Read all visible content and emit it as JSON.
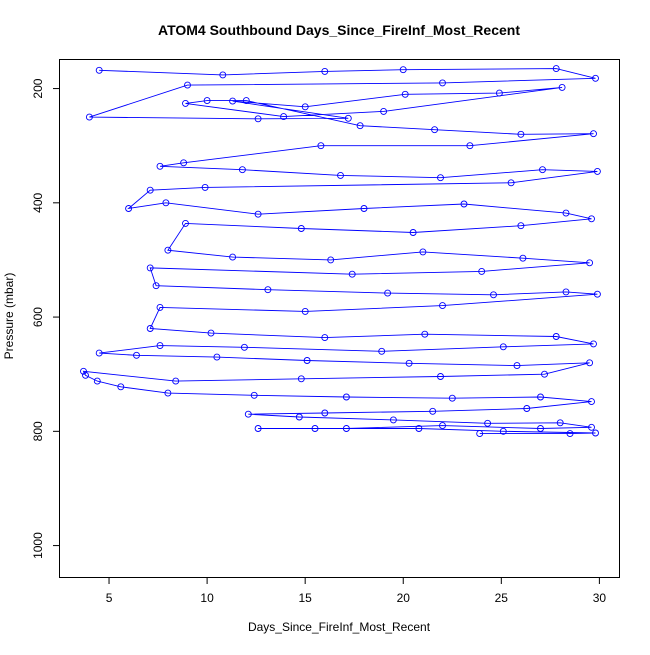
{
  "chart_data": {
    "type": "line",
    "title": "ATOM4 Southbound Days_Since_FireInf_Most_Recent",
    "xlabel": "Days_Since_FireInf_Most_Recent",
    "ylabel": "Pressure (mbar)",
    "xlim": [
      2.5,
      31
    ],
    "ylim": [
      1055,
      150
    ],
    "y_axis_inverted": true,
    "grid": false,
    "legend": "none",
    "marker": "open-circle",
    "colors": {
      "series": "#0000ff",
      "axes": "#000000",
      "background": "#ffffff"
    },
    "x_ticks": [
      {
        "value": 5,
        "label": "5"
      },
      {
        "value": 10,
        "label": "10"
      },
      {
        "value": 15,
        "label": "15"
      },
      {
        "value": 20,
        "label": "20"
      },
      {
        "value": 25,
        "label": "25"
      },
      {
        "value": 30,
        "label": "30"
      }
    ],
    "y_ticks": [
      {
        "value": 200,
        "label": "200"
      },
      {
        "value": 400,
        "label": "400"
      },
      {
        "value": 600,
        "label": "600"
      },
      {
        "value": 800,
        "label": "800"
      },
      {
        "value": 1000,
        "label": "1000"
      }
    ],
    "series": [
      {
        "points": [
          [
            4.5,
            168
          ],
          [
            10.8,
            176
          ],
          [
            16.0,
            170
          ],
          [
            20.0,
            167
          ],
          [
            27.8,
            165
          ],
          [
            29.8,
            182
          ],
          [
            22.0,
            190
          ],
          [
            9.0,
            194
          ],
          [
            4.0,
            250
          ],
          [
            12.6,
            253
          ],
          [
            17.2,
            252
          ],
          [
            11.3,
            222
          ],
          [
            15.0,
            232
          ],
          [
            20.1,
            210
          ],
          [
            24.9,
            208
          ],
          [
            28.1,
            198
          ],
          [
            19.0,
            240
          ],
          [
            13.9,
            249
          ],
          [
            8.9,
            226
          ],
          [
            10.0,
            221
          ],
          [
            12.0,
            221
          ],
          [
            17.8,
            265
          ],
          [
            21.6,
            272
          ],
          [
            26.0,
            280
          ],
          [
            29.7,
            279
          ],
          [
            23.4,
            300
          ],
          [
            15.8,
            300
          ],
          [
            8.8,
            330
          ],
          [
            7.6,
            336
          ],
          [
            11.8,
            342
          ],
          [
            16.8,
            352
          ],
          [
            21.9,
            356
          ],
          [
            27.1,
            342
          ],
          [
            29.9,
            345
          ],
          [
            25.5,
            365
          ],
          [
            9.9,
            373
          ],
          [
            7.1,
            378
          ],
          [
            6.0,
            410
          ],
          [
            7.9,
            400
          ],
          [
            12.6,
            420
          ],
          [
            18.0,
            410
          ],
          [
            23.1,
            402
          ],
          [
            28.3,
            418
          ],
          [
            29.6,
            428
          ],
          [
            26.0,
            440
          ],
          [
            20.5,
            452
          ],
          [
            14.8,
            445
          ],
          [
            8.9,
            436
          ],
          [
            8.0,
            483
          ],
          [
            11.3,
            495
          ],
          [
            16.3,
            500
          ],
          [
            21.0,
            486
          ],
          [
            26.1,
            497
          ],
          [
            29.5,
            505
          ],
          [
            24.0,
            520
          ],
          [
            17.4,
            525
          ],
          [
            7.1,
            514
          ],
          [
            7.4,
            545
          ],
          [
            13.1,
            552
          ],
          [
            19.2,
            558
          ],
          [
            24.6,
            561
          ],
          [
            28.3,
            556
          ],
          [
            29.9,
            560
          ],
          [
            22.0,
            580
          ],
          [
            15.0,
            590
          ],
          [
            7.6,
            583
          ],
          [
            7.1,
            620
          ],
          [
            10.2,
            628
          ],
          [
            16.0,
            636
          ],
          [
            21.1,
            630
          ],
          [
            27.8,
            634
          ],
          [
            29.7,
            647
          ],
          [
            25.1,
            652
          ],
          [
            18.9,
            660
          ],
          [
            11.9,
            653
          ],
          [
            7.6,
            650
          ],
          [
            4.5,
            663
          ],
          [
            6.4,
            667
          ],
          [
            10.5,
            670
          ],
          [
            15.1,
            676
          ],
          [
            20.3,
            681
          ],
          [
            25.8,
            685
          ],
          [
            29.5,
            680
          ],
          [
            27.2,
            700
          ],
          [
            21.9,
            704
          ],
          [
            14.8,
            708
          ],
          [
            8.4,
            712
          ],
          [
            3.7,
            695
          ],
          [
            3.8,
            702
          ],
          [
            4.4,
            712
          ],
          [
            5.6,
            722
          ],
          [
            8.0,
            733
          ],
          [
            12.4,
            737
          ],
          [
            17.1,
            740
          ],
          [
            22.5,
            742
          ],
          [
            27.0,
            740
          ],
          [
            29.6,
            748
          ],
          [
            26.3,
            760
          ],
          [
            21.5,
            765
          ],
          [
            16.0,
            768
          ],
          [
            12.1,
            770
          ],
          [
            14.7,
            775
          ],
          [
            19.5,
            780
          ],
          [
            24.3,
            786
          ],
          [
            28.0,
            785
          ],
          [
            29.6,
            793
          ],
          [
            27.0,
            795
          ],
          [
            22.0,
            790
          ],
          [
            17.1,
            795
          ],
          [
            12.6,
            795
          ],
          [
            15.5,
            795
          ],
          [
            20.8,
            795
          ],
          [
            25.1,
            800
          ],
          [
            29.8,
            803
          ],
          [
            28.5,
            804
          ],
          [
            23.9,
            804
          ]
        ]
      }
    ]
  }
}
